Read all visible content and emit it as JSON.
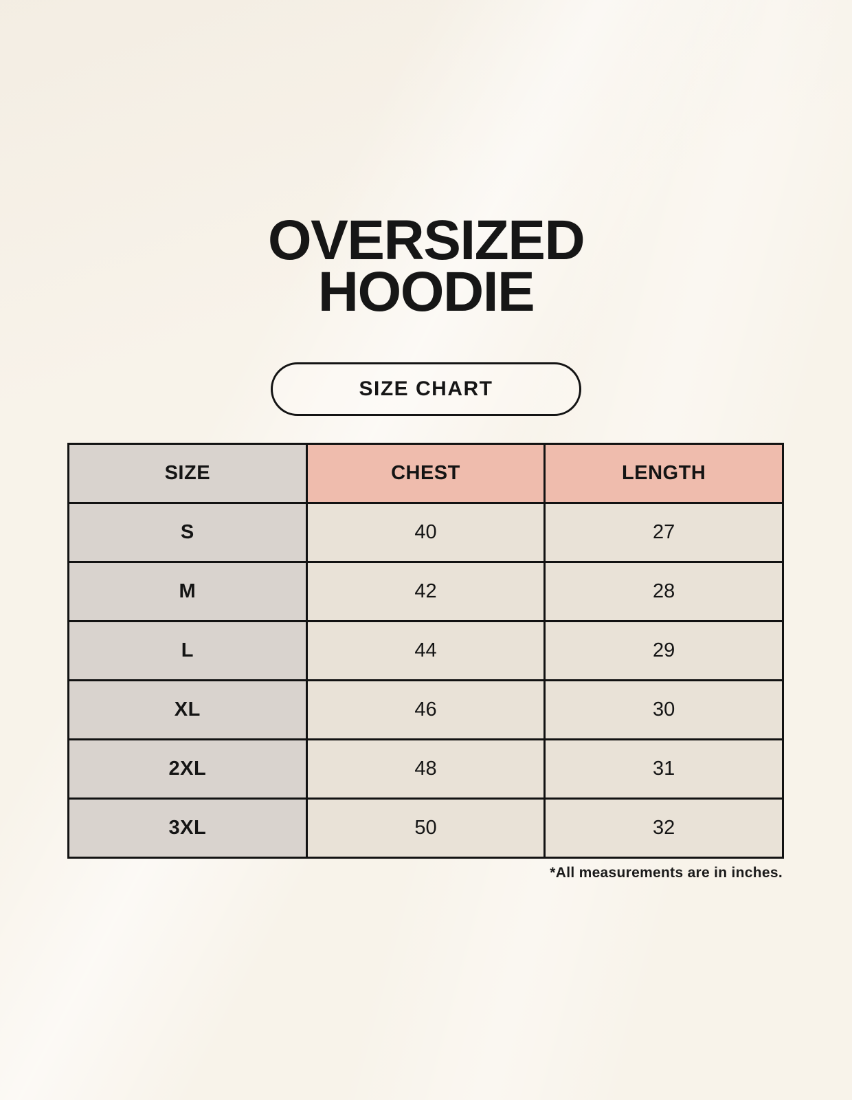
{
  "title": {
    "line1": "OVERSIZED",
    "line2": "HOODIE"
  },
  "size_chart_button": {
    "label": "SIZE CHART"
  },
  "table": {
    "columns": [
      {
        "label": "SIZE"
      },
      {
        "label": "CHEST"
      },
      {
        "label": "LENGTH"
      }
    ],
    "rows": [
      {
        "size": "S",
        "chest": "40",
        "length": "27"
      },
      {
        "size": "M",
        "chest": "42",
        "length": "28"
      },
      {
        "size": "L",
        "chest": "44",
        "length": "29"
      },
      {
        "size": "XL",
        "chest": "46",
        "length": "30"
      },
      {
        "size": "2XL",
        "chest": "48",
        "length": "31"
      },
      {
        "size": "3XL",
        "chest": "50",
        "length": "32"
      }
    ]
  },
  "footnote": "*All measurements are in inches.",
  "colors": {
    "page_background": "#F8F3EA",
    "size_column_background": "#D9D3CE",
    "accent_header_background": "#EFBCAD",
    "data_cell_background": "#E9E2D7",
    "table_border": "#121212",
    "text": "#141414"
  },
  "chart_data": {
    "type": "table",
    "title": "OVERSIZED HOODIE",
    "subtitle": "SIZE CHART",
    "columns": [
      "SIZE",
      "CHEST",
      "LENGTH"
    ],
    "rows": [
      [
        "S",
        40,
        27
      ],
      [
        "M",
        42,
        28
      ],
      [
        "L",
        44,
        29
      ],
      [
        "XL",
        46,
        30
      ],
      [
        "2XL",
        48,
        31
      ],
      [
        "3XL",
        50,
        32
      ]
    ],
    "units": "inches",
    "note": "*All measurements are in inches."
  }
}
